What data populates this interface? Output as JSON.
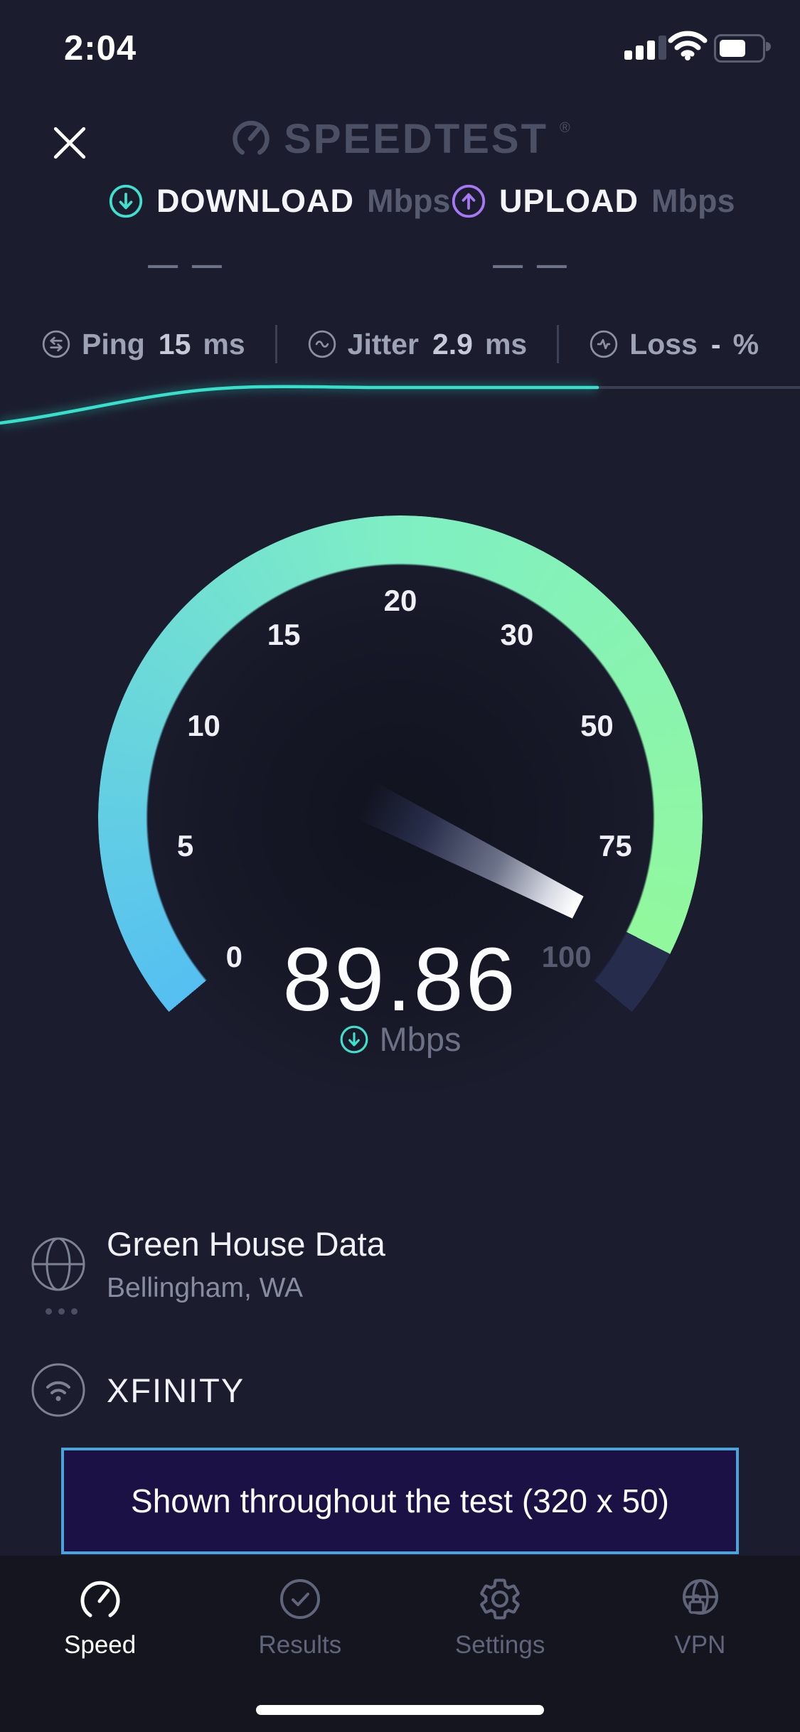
{
  "status_bar": {
    "time": "2:04"
  },
  "header": {
    "logo_text": "SPEEDTEST",
    "trademark": "®"
  },
  "metrics": {
    "download": {
      "label": "DOWNLOAD",
      "unit": "Mbps",
      "placeholder": "— —"
    },
    "upload": {
      "label": "UPLOAD",
      "unit": "Mbps",
      "placeholder": "— —"
    }
  },
  "latency": {
    "items": [
      {
        "name": "ping",
        "label": "Ping",
        "value": "15",
        "unit": "ms"
      },
      {
        "name": "jitter",
        "label": "Jitter",
        "value": "2.9",
        "unit": "ms"
      },
      {
        "name": "loss",
        "label": "Loss",
        "value": "-",
        "unit": "%"
      }
    ]
  },
  "gauge": {
    "value": "89.86",
    "unit": "Mbps",
    "tick_values": [
      0,
      5,
      10,
      15,
      20,
      30,
      50,
      75,
      100
    ],
    "dim_ticks": [
      "100"
    ],
    "colors": {
      "arc_start": "#55bff2",
      "arc_mid": "#7fefc3",
      "arc_end": "#92f89d",
      "arc_remainder": "#262c4b"
    }
  },
  "connection": {
    "server_name": "Green House Data",
    "server_location": "Bellingham, WA",
    "isp_name": "XFINITY"
  },
  "ad_banner": {
    "text": "Shown throughout the test (320 x 50)",
    "border_color": "#4aa3da",
    "background": "#1c1145"
  },
  "tab_bar": {
    "items": [
      {
        "label": "Speed",
        "icon": "speedometer-icon",
        "active": true
      },
      {
        "label": "Results",
        "icon": "results-check-icon",
        "active": false
      },
      {
        "label": "Settings",
        "icon": "settings-gear-icon",
        "active": false
      },
      {
        "label": "VPN",
        "icon": "vpn-globe-lock-icon",
        "active": false
      }
    ]
  },
  "accents": {
    "download": "#3fe0cd",
    "upload": "#a678f5",
    "sparkline": "#35e0cd"
  }
}
